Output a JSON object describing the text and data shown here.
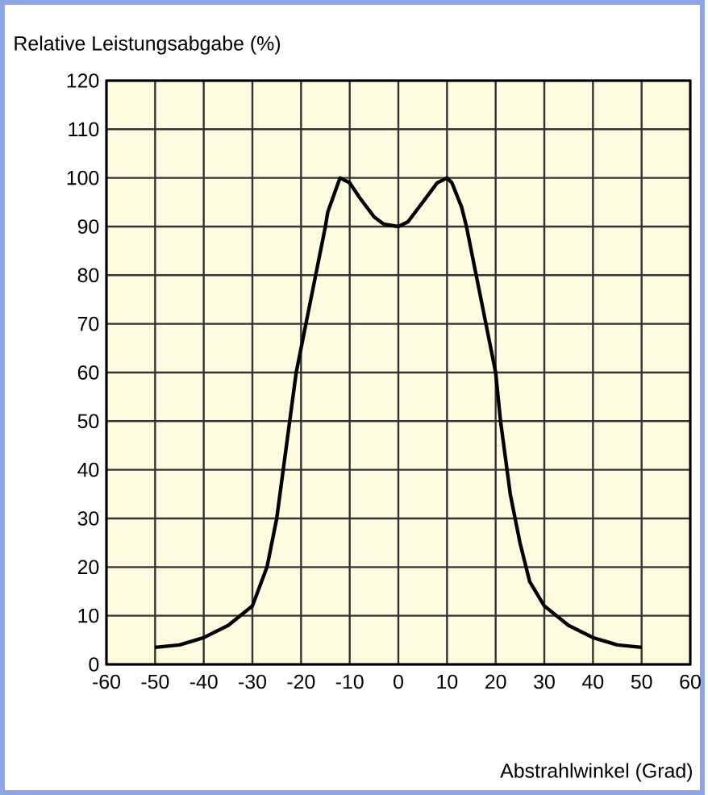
{
  "chart_data": {
    "type": "line",
    "xlabel": "Abstrahlwinkel (Grad)",
    "ylabel": "Relative Leistungsabgabe (%)",
    "xlim": [
      -60,
      60
    ],
    "xticks": [
      -60,
      -50,
      -40,
      -30,
      -20,
      -10,
      0,
      10,
      20,
      30,
      40,
      50,
      60
    ],
    "ylim": [
      0,
      120
    ],
    "yticks": [
      0,
      10,
      20,
      30,
      40,
      50,
      60,
      70,
      80,
      90,
      100,
      110,
      120
    ],
    "grid": true,
    "marker": "none",
    "line_style": "solid",
    "series": [
      {
        "color": "#000000",
        "x": [
          -50,
          -45,
          -40,
          -35,
          -30,
          -27,
          -25,
          -23,
          -21,
          -19,
          -17,
          -15,
          -14.5,
          -12,
          -10,
          -8,
          -5,
          -3,
          0,
          2,
          5,
          8,
          10,
          11,
          13,
          14,
          16,
          18,
          20,
          21,
          23,
          25,
          27,
          30,
          35,
          40,
          45,
          50
        ],
        "values": [
          3.5,
          4,
          5.5,
          8,
          12,
          20,
          30,
          45,
          60,
          70,
          80,
          90,
          93,
          100,
          99,
          96,
          92,
          90.5,
          90,
          91,
          95,
          99,
          100,
          99,
          94,
          90,
          80,
          70,
          60,
          50,
          35,
          25,
          17,
          12,
          8,
          5.5,
          4,
          3.5
        ]
      }
    ]
  }
}
